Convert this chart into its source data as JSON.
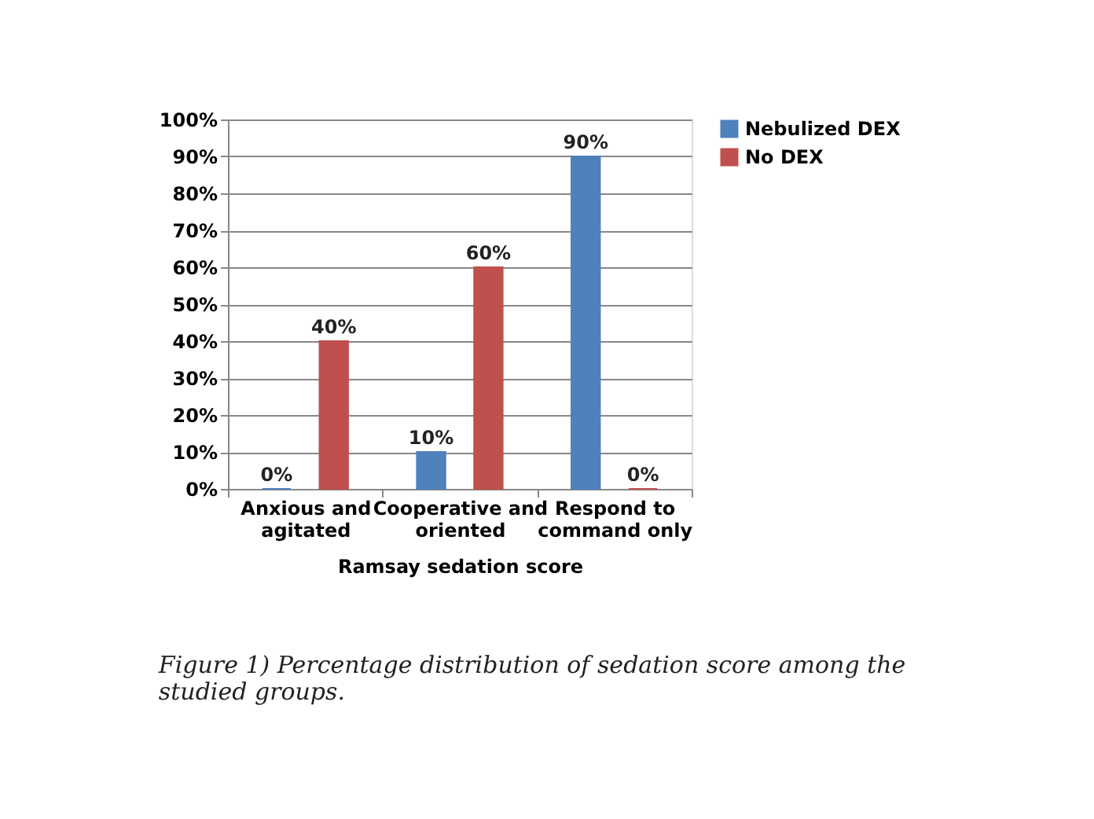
{
  "chart_data": {
    "type": "bar",
    "categories": [
      "Anxious and agitated",
      "Cooperative and oriented",
      "Respond to command only"
    ],
    "series": [
      {
        "name": "Nebulized DEX",
        "color": "#4f81bd",
        "values": [
          0,
          10,
          90
        ],
        "value_labels": [
          "0%",
          "10%",
          "90%"
        ]
      },
      {
        "name": "No DEX",
        "color": "#c0504d",
        "values": [
          40,
          60,
          0
        ],
        "value_labels": [
          "40%",
          "60%",
          "0%"
        ]
      }
    ],
    "xlabel": "Ramsay sedation score",
    "ylim": [
      0,
      100
    ],
    "yticks": [
      {
        "value": 0,
        "label": "0%"
      },
      {
        "value": 10,
        "label": "10%"
      },
      {
        "value": 20,
        "label": "20%"
      },
      {
        "value": 30,
        "label": "30%"
      },
      {
        "value": 40,
        "label": "40%"
      },
      {
        "value": 50,
        "label": "50%"
      },
      {
        "value": 60,
        "label": "60%"
      },
      {
        "value": 70,
        "label": "70%"
      },
      {
        "value": 80,
        "label": "80%"
      },
      {
        "value": 90,
        "label": "90%"
      },
      {
        "value": 100,
        "label": "100%"
      }
    ],
    "grid": "y",
    "legend": "right",
    "annotations": [
      "Figure 1) Percentage distribution of sedation score among the studied groups."
    ]
  }
}
